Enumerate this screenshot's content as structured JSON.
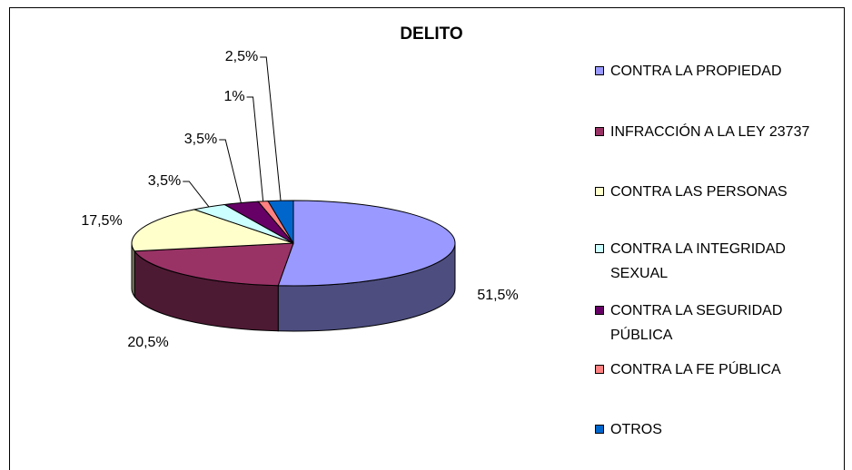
{
  "chart_data": {
    "type": "pie",
    "title": "DELITO",
    "categories": [
      "CONTRA LA PROPIEDAD",
      "INFRACCIÓN A LA LEY 23737",
      "CONTRA LAS PERSONAS",
      "CONTRA LA INTEGRIDAD SEXUAL",
      "CONTRA LA SEGURIDAD PÚBLICA",
      "CONTRA LA FE PÚBLICA",
      "OTROS"
    ],
    "values": [
      51.5,
      20.5,
      17.5,
      3.5,
      3.5,
      1,
      2.5
    ],
    "value_labels": [
      "51,5%",
      "20,5%",
      "17,5%",
      "3,5%",
      "3,5%",
      "1%",
      "2,5%"
    ],
    "colors": [
      "#9999ff",
      "#993366",
      "#ffffcc",
      "#ccffff",
      "#660066",
      "#ff8080",
      "#0066cc"
    ]
  }
}
